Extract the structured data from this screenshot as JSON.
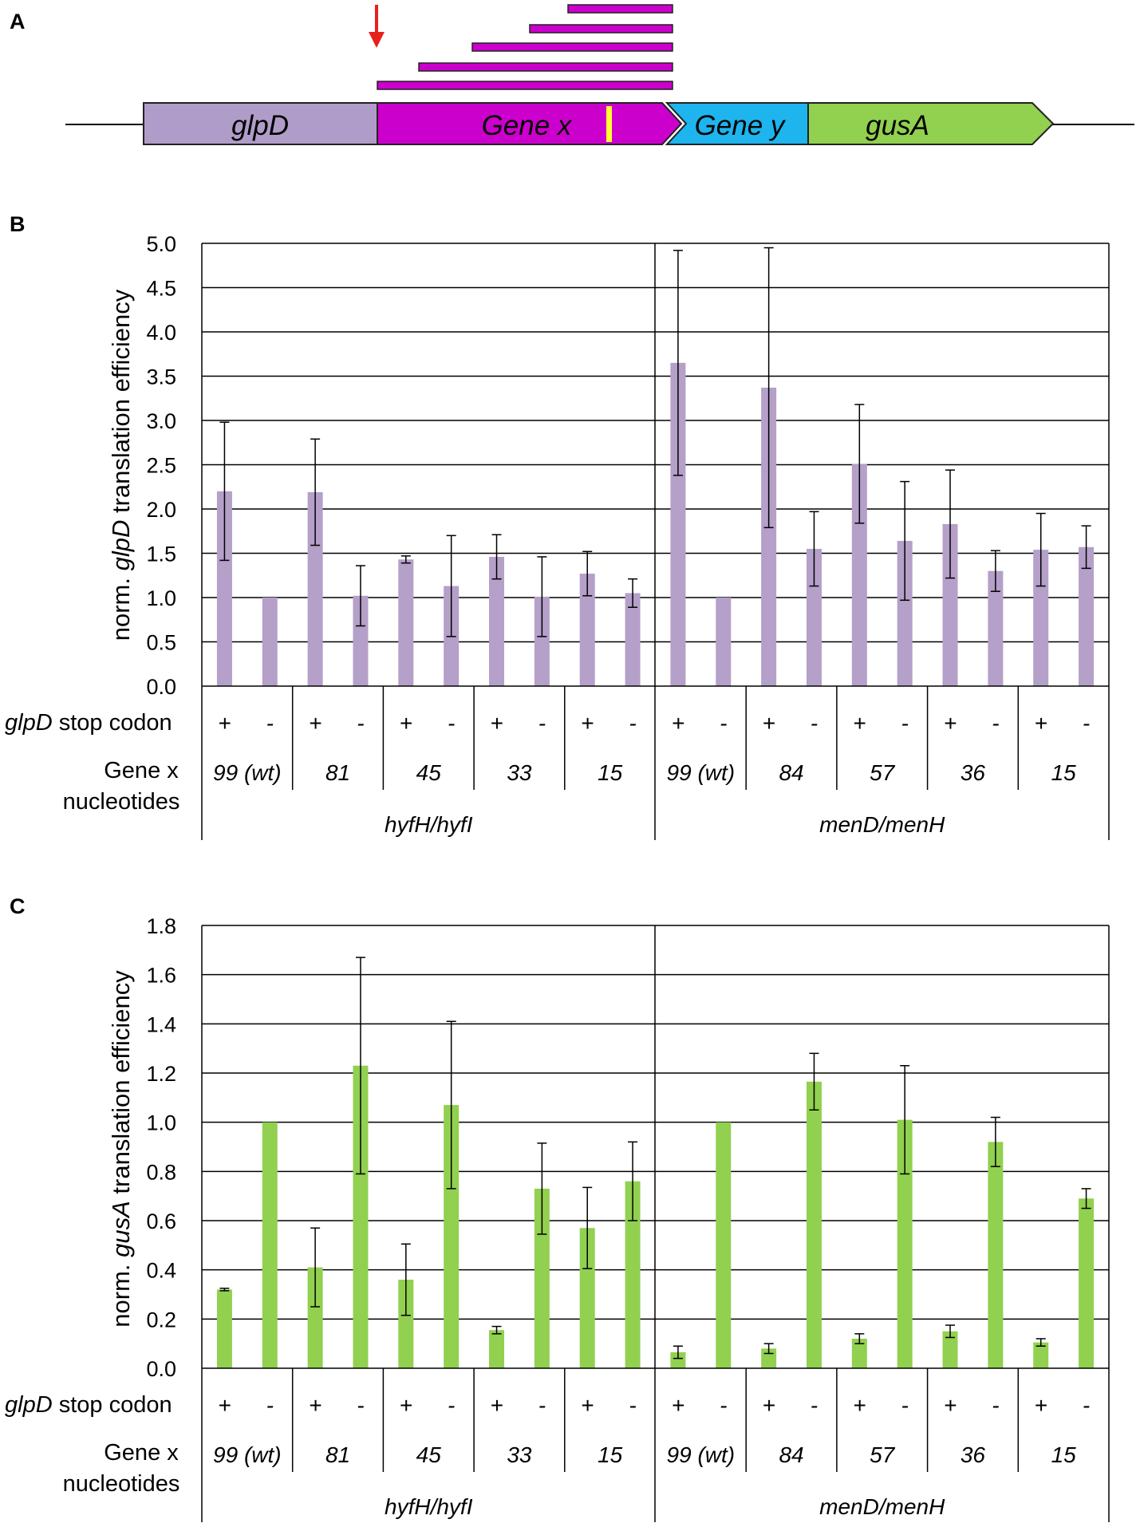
{
  "panel_a": {
    "label": "A",
    "genes": [
      {
        "name": "glpD",
        "color": "#b09cc8"
      },
      {
        "name": "Gene x",
        "color": "#cc00cc"
      },
      {
        "name": "Gene y",
        "color": "#1eb4ee"
      },
      {
        "name": "gusA",
        "color": "#92d050"
      }
    ],
    "arrow_color": "#e8201a",
    "stop_mark_color": "#ffff33",
    "fragment_count": 5
  },
  "colors": {
    "panel_b_bar": "#b4a0c8",
    "panel_c_bar": "#92d050",
    "grid": "#000000"
  },
  "chart_data": [
    {
      "type": "bar",
      "panel_label": "B",
      "ylabel_prefix": "norm. ",
      "ylabel_italic": "glpD",
      "ylabel_suffix": " translation efficiency",
      "ylim": [
        0,
        5
      ],
      "yticks": [
        "0.0",
        "0.5",
        "1.0",
        "1.5",
        "2.0",
        "2.5",
        "3.0",
        "3.5",
        "4.0",
        "4.5",
        "5.0"
      ],
      "row1_label_italic": "glpD",
      "row1_label_suffix": " stop codon",
      "row2_label_line1": "Gene x",
      "row2_label_line2": "nucleotides",
      "groups": [
        {
          "name": "hyfH/hyfI",
          "subgroups": [
            {
              "label": "99 (wt)",
              "plus": {
                "value": 2.2,
                "error": 0.78
              },
              "minus": {
                "value": 1.0,
                "error": 0.0
              }
            },
            {
              "label": "81",
              "plus": {
                "value": 2.19,
                "error": 0.6
              },
              "minus": {
                "value": 1.02,
                "error": 0.34
              }
            },
            {
              "label": "45",
              "plus": {
                "value": 1.43,
                "error": 0.04
              },
              "minus": {
                "value": 1.13,
                "error": 0.57
              }
            },
            {
              "label": "33",
              "plus": {
                "value": 1.46,
                "error": 0.25
              },
              "minus": {
                "value": 1.01,
                "error": 0.45
              }
            },
            {
              "label": "15",
              "plus": {
                "value": 1.27,
                "error": 0.25
              },
              "minus": {
                "value": 1.05,
                "error": 0.16
              }
            }
          ]
        },
        {
          "name": "menD/menH",
          "subgroups": [
            {
              "label": "99 (wt)",
              "plus": {
                "value": 3.65,
                "error": 1.27
              },
              "minus": {
                "value": 1.0,
                "error": 0.0
              }
            },
            {
              "label": "84",
              "plus": {
                "value": 3.37,
                "error": 1.58
              },
              "minus": {
                "value": 1.55,
                "error": 0.42
              }
            },
            {
              "label": "57",
              "plus": {
                "value": 2.51,
                "error": 0.67
              },
              "minus": {
                "value": 1.64,
                "error": 0.67
              }
            },
            {
              "label": "36",
              "plus": {
                "value": 1.83,
                "error": 0.61
              },
              "minus": {
                "value": 1.3,
                "error": 0.23
              }
            },
            {
              "label": "15",
              "plus": {
                "value": 1.54,
                "error": 0.41
              },
              "minus": {
                "value": 1.57,
                "error": 0.24
              }
            }
          ]
        }
      ],
      "plus_label": "+",
      "minus_label": "-"
    },
    {
      "type": "bar",
      "panel_label": "C",
      "ylabel_prefix": "norm. ",
      "ylabel_italic": "gusA",
      "ylabel_suffix": " translation efficiency",
      "ylim": [
        0,
        1.8
      ],
      "yticks": [
        "0.0",
        "0.2",
        "0.4",
        "0.6",
        "0.8",
        "1.0",
        "1.2",
        "1.4",
        "1.6",
        "1.8"
      ],
      "row1_label_italic": "glpD",
      "row1_label_suffix": " stop codon",
      "row2_label_line1": "Gene x",
      "row2_label_line2": "nucleotides",
      "groups": [
        {
          "name": "hyfH/hyfI",
          "subgroups": [
            {
              "label": "99 (wt)",
              "plus": {
                "value": 0.32,
                "error": 0.005
              },
              "minus": {
                "value": 1.0,
                "error": 0.0
              }
            },
            {
              "label": "81",
              "plus": {
                "value": 0.41,
                "error": 0.16
              },
              "minus": {
                "value": 1.23,
                "error": 0.44
              }
            },
            {
              "label": "45",
              "plus": {
                "value": 0.36,
                "error": 0.145
              },
              "minus": {
                "value": 1.07,
                "error": 0.34
              }
            },
            {
              "label": "33",
              "plus": {
                "value": 0.155,
                "error": 0.015
              },
              "minus": {
                "value": 0.73,
                "error": 0.185
              }
            },
            {
              "label": "15",
              "plus": {
                "value": 0.57,
                "error": 0.165
              },
              "minus": {
                "value": 0.76,
                "error": 0.16
              }
            }
          ]
        },
        {
          "name": "menD/menH",
          "subgroups": [
            {
              "label": "99 (wt)",
              "plus": {
                "value": 0.065,
                "error": 0.025
              },
              "minus": {
                "value": 1.0,
                "error": 0.0
              }
            },
            {
              "label": "84",
              "plus": {
                "value": 0.08,
                "error": 0.02
              },
              "minus": {
                "value": 1.165,
                "error": 0.115
              }
            },
            {
              "label": "57",
              "plus": {
                "value": 0.12,
                "error": 0.02
              },
              "minus": {
                "value": 1.01,
                "error": 0.22
              }
            },
            {
              "label": "36",
              "plus": {
                "value": 0.15,
                "error": 0.025
              },
              "minus": {
                "value": 0.92,
                "error": 0.1
              }
            },
            {
              "label": "15",
              "plus": {
                "value": 0.105,
                "error": 0.015
              },
              "minus": {
                "value": 0.69,
                "error": 0.04
              }
            }
          ]
        }
      ],
      "plus_label": "+",
      "minus_label": "-"
    }
  ]
}
